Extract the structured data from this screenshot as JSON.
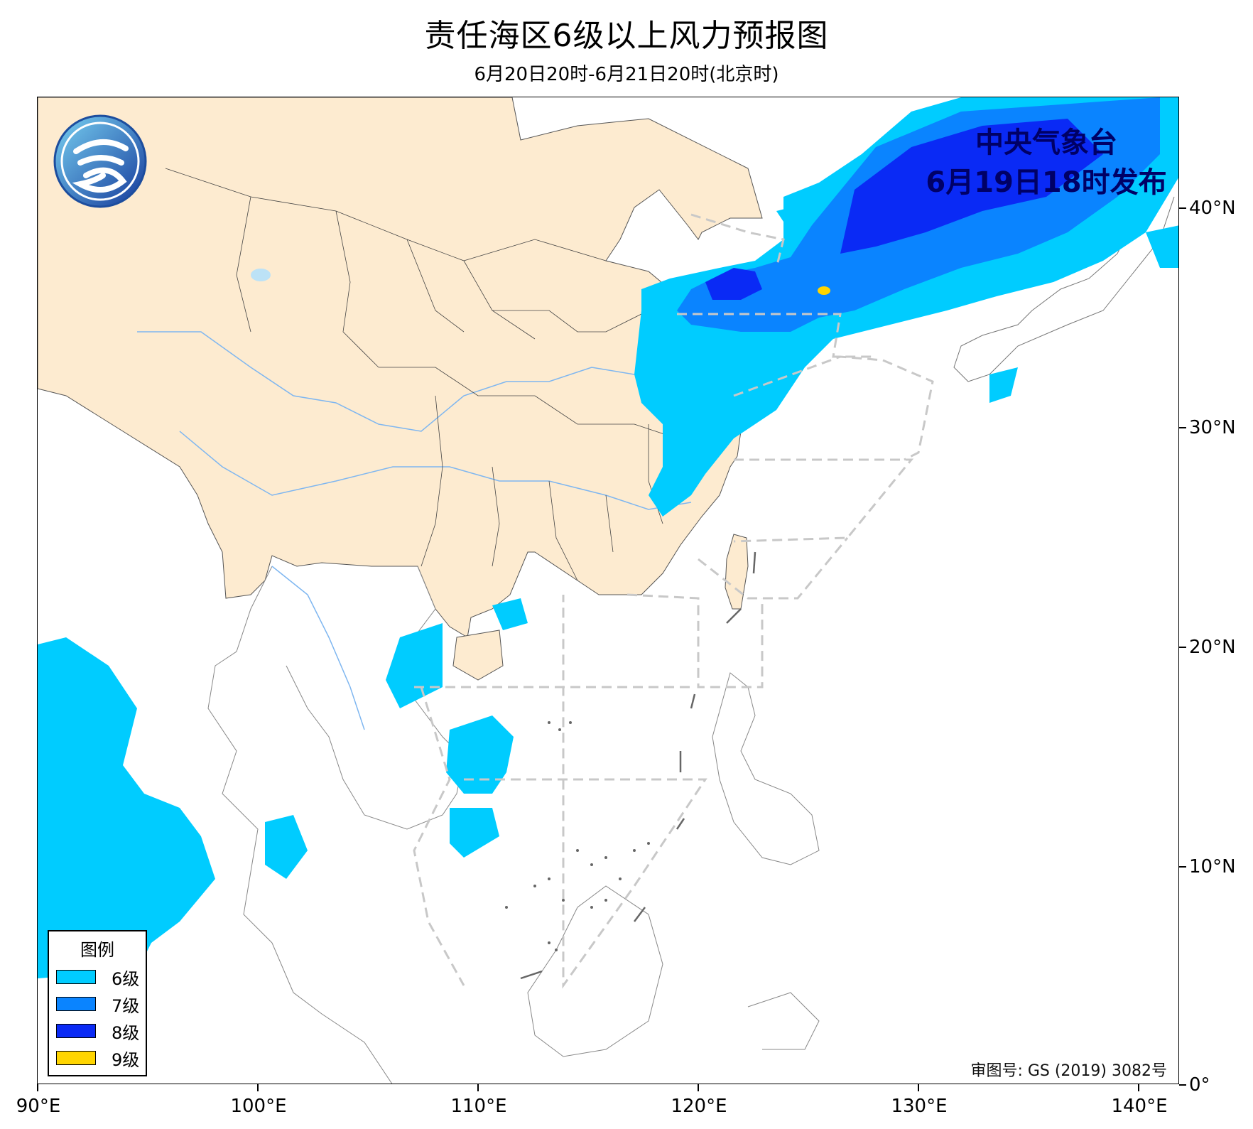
{
  "header": {
    "title": "责任海区6级以上风力预报图",
    "subtitle": "6月20日20时-6月21日20时(北京时)"
  },
  "issuer": {
    "line1": "中央气象台",
    "line2": "6月19日18时发布"
  },
  "approval_number": "审图号: GS (2019) 3082号",
  "legend": {
    "title": "图例",
    "items": [
      {
        "label": "6级",
        "color": "#00CCFF"
      },
      {
        "label": "7级",
        "color": "#0A84FF"
      },
      {
        "label": "8级",
        "color": "#0A2AF5"
      },
      {
        "label": "9级",
        "color": "#FFD500"
      }
    ]
  },
  "axes": {
    "x_ticks": [
      "90°E",
      "100°E",
      "110°E",
      "120°E",
      "130°E",
      "140°E"
    ],
    "y_ticks": [
      "40°N",
      "30°N",
      "20°N",
      "10°N",
      "0°"
    ]
  },
  "colors": {
    "china_land": "#FDEBD0",
    "river": "#7EB6F0",
    "boundary_dash": "#C8C8C8",
    "issuer_text": "#000066"
  }
}
